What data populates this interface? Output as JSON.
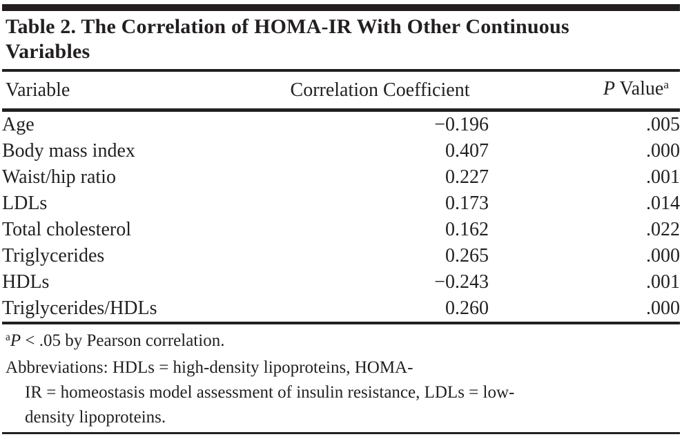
{
  "title_lines": [
    "Table 2. The Correlation of HOMA-IR With Other Continuous",
    "Variables"
  ],
  "table": {
    "headers": {
      "variable": "Variable",
      "coefficient": "Correlation Coefficient",
      "p_value": {
        "italic": "P",
        "text": " Value",
        "sup": "a"
      }
    },
    "rows": [
      {
        "variable": "Age",
        "coefficient": "−0.196",
        "p_value": ".005"
      },
      {
        "variable": "Body mass index",
        "coefficient": "0.407",
        "p_value": ".000"
      },
      {
        "variable": "Waist/hip ratio",
        "coefficient": "0.227",
        "p_value": ".001"
      },
      {
        "variable": "LDLs",
        "coefficient": "0.173",
        "p_value": ".014"
      },
      {
        "variable": "Total cholesterol",
        "coefficient": "0.162",
        "p_value": ".022"
      },
      {
        "variable": "Triglycerides",
        "coefficient": "0.265",
        "p_value": ".000"
      },
      {
        "variable": "HDLs",
        "coefficient": "−0.243",
        "p_value": ".001"
      },
      {
        "variable": "Triglycerides/HDLs",
        "coefficient": "0.260",
        "p_value": ".000"
      }
    ]
  },
  "footnotes": {
    "pearson": {
      "sup": "a",
      "italic": "P",
      "text": " < .05 by Pearson correlation."
    },
    "abbr_lines": [
      "Abbreviations: HDLs = high-density lipoproteins, HOMA-",
      "IR = homeostasis model assessment of insulin resistance, LDLs = low-",
      "density lipoproteins."
    ]
  },
  "colors": {
    "ink": "#231f20",
    "background": "#ffffff"
  }
}
